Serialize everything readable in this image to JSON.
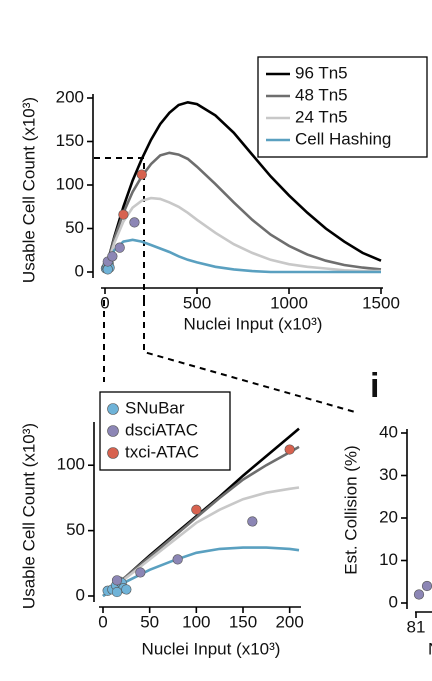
{
  "chart_data": [
    {
      "type": "line",
      "xlabel": "Nuclei Input (x10³)",
      "ylabel": "Usable Cell Count (x10³)",
      "xlim": [
        0,
        1500
      ],
      "ylim": [
        0,
        200
      ],
      "xticks": [
        0,
        500,
        1000,
        1500
      ],
      "yticks": [
        0,
        50,
        100,
        150,
        200
      ],
      "legend": "upper right",
      "series": [
        {
          "name": "96 Tn5",
          "color": "#000000",
          "x": [
            0,
            50,
            100,
            150,
            200,
            250,
            300,
            350,
            400,
            450,
            500,
            600,
            700,
            800,
            900,
            1000,
            1100,
            1200,
            1300,
            1400,
            1500
          ],
          "values": [
            0,
            40,
            75,
            105,
            130,
            152,
            170,
            183,
            192,
            195,
            193,
            180,
            160,
            135,
            110,
            88,
            68,
            50,
            35,
            22,
            13
          ]
        },
        {
          "name": "48 Tn5",
          "color": "#6e6e6e",
          "x": [
            0,
            50,
            100,
            150,
            200,
            250,
            300,
            350,
            400,
            450,
            500,
            600,
            700,
            800,
            900,
            1000,
            1100,
            1200,
            1300,
            1400,
            1500
          ],
          "values": [
            0,
            38,
            68,
            92,
            110,
            124,
            134,
            137,
            135,
            130,
            121,
            101,
            80,
            60,
            43,
            30,
            20,
            13,
            8,
            5,
            3
          ]
        },
        {
          "name": "24 Tn5",
          "color": "#c8c8c8",
          "x": [
            0,
            50,
            100,
            150,
            200,
            250,
            300,
            350,
            400,
            450,
            500,
            600,
            700,
            800,
            900,
            1000,
            1100,
            1200,
            1300,
            1400,
            1500
          ],
          "values": [
            0,
            33,
            58,
            74,
            82,
            85,
            84,
            80,
            75,
            68,
            60,
            45,
            32,
            22,
            14,
            9,
            6,
            4,
            2,
            1,
            1
          ]
        },
        {
          "name": "Cell Hashing",
          "color": "#5aa0c0",
          "x": [
            0,
            50,
            100,
            150,
            200,
            250,
            300,
            350,
            400,
            450,
            500,
            600,
            700,
            800,
            900,
            1000,
            1100,
            1200,
            1300,
            1400,
            1500
          ],
          "values": [
            0,
            25,
            35,
            37,
            35,
            31,
            27,
            23,
            18,
            14,
            11,
            6,
            3,
            1,
            0,
            0,
            0,
            0,
            0,
            0,
            0
          ]
        },
        {
          "mark": "dot",
          "color": "#6fb3d8",
          "x": [
            5,
            10,
            14,
            18,
            20,
            22,
            25,
            15
          ],
          "values": [
            4,
            5,
            8,
            11,
            10,
            6,
            5,
            3
          ]
        },
        {
          "mark": "dot",
          "color": "#8c86b5",
          "x": [
            15,
            40,
            80,
            160
          ],
          "values": [
            12,
            18,
            28,
            57
          ]
        },
        {
          "mark": "dot",
          "color": "#d7624f",
          "x": [
            100,
            200
          ],
          "values": [
            66,
            112
          ]
        }
      ]
    },
    {
      "type": "scatter",
      "xlabel": "Nuclei Input (x10³)",
      "ylabel": "Usable Cell Count (x10³)",
      "xlim": [
        0,
        210
      ],
      "ylim": [
        0,
        130
      ],
      "xticks": [
        0,
        50,
        100,
        150,
        200
      ],
      "yticks": [
        0,
        50,
        100
      ],
      "legend": "upper left",
      "series": [
        {
          "mark": "line",
          "color": "#000000",
          "x": [
            0,
            25,
            50,
            75,
            100,
            125,
            150,
            175,
            200,
            210
          ],
          "values": [
            0,
            15,
            31,
            46,
            61,
            76,
            92,
            107,
            122,
            128
          ]
        },
        {
          "mark": "line",
          "color": "#6e6e6e",
          "x": [
            0,
            25,
            50,
            75,
            100,
            125,
            150,
            175,
            200,
            210
          ],
          "values": [
            0,
            15,
            30,
            45,
            60,
            75,
            89,
            100,
            110,
            114
          ]
        },
        {
          "mark": "line",
          "color": "#c8c8c8",
          "x": [
            0,
            25,
            50,
            75,
            100,
            125,
            150,
            175,
            200,
            210
          ],
          "values": [
            0,
            14,
            28,
            42,
            56,
            66,
            74,
            79,
            82,
            83
          ]
        },
        {
          "mark": "line",
          "color": "#5aa0c0",
          "x": [
            0,
            25,
            50,
            75,
            100,
            125,
            150,
            175,
            200,
            210
          ],
          "values": [
            0,
            11,
            20,
            27,
            33,
            36,
            37,
            37,
            36,
            35
          ]
        },
        {
          "name": "SNuBar",
          "color": "#6fb3d8",
          "x": [
            5,
            10,
            14,
            18,
            20,
            22,
            25,
            15
          ],
          "values": [
            4,
            5,
            8,
            11,
            10,
            6,
            5,
            3
          ]
        },
        {
          "name": "dsciATAC",
          "color": "#8c86b5",
          "x": [
            15,
            40,
            80,
            160
          ],
          "values": [
            12,
            18,
            28,
            57
          ]
        },
        {
          "name": "txci-ATAC",
          "color": "#d7624f",
          "x": [
            100,
            200
          ],
          "values": [
            66,
            112
          ]
        }
      ]
    },
    {
      "type": "scatter",
      "panel_label": "i",
      "xlabel": "N",
      "ylabel": "Est. Collision (%)",
      "ylim": [
        0,
        40
      ],
      "yticks": [
        0,
        10,
        20,
        30,
        40
      ],
      "xtick_labels": [
        "81"
      ],
      "series": [
        {
          "color": "#8c86b5",
          "values": [
            2,
            4
          ]
        }
      ]
    }
  ]
}
